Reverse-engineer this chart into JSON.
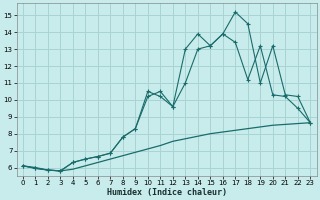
{
  "xlabel": "Humidex (Indice chaleur)",
  "bg_color": "#c8ecec",
  "grid_color": "#aad4d4",
  "line_color": "#1a6b6b",
  "xlim": [
    -0.5,
    23.5
  ],
  "ylim": [
    5.5,
    15.7
  ],
  "xticks": [
    0,
    1,
    2,
    3,
    4,
    5,
    6,
    7,
    8,
    9,
    10,
    11,
    12,
    13,
    14,
    15,
    16,
    17,
    18,
    19,
    20,
    21,
    22,
    23
  ],
  "yticks": [
    6,
    7,
    8,
    9,
    10,
    11,
    12,
    13,
    14,
    15
  ],
  "line1_x": [
    0,
    1,
    2,
    3,
    4,
    5,
    6,
    7,
    8,
    9,
    10,
    11,
    12,
    13,
    14,
    15,
    16,
    17,
    18,
    19,
    20,
    21,
    22,
    23
  ],
  "line1_y": [
    6.1,
    6.0,
    5.85,
    5.8,
    5.9,
    6.1,
    6.3,
    6.5,
    6.7,
    6.9,
    7.1,
    7.3,
    7.55,
    7.7,
    7.85,
    8.0,
    8.1,
    8.2,
    8.3,
    8.4,
    8.5,
    8.55,
    8.6,
    8.65
  ],
  "line2_x": [
    0,
    1,
    2,
    3,
    4,
    5,
    6,
    7,
    8,
    9,
    10,
    11,
    12,
    13,
    14,
    15,
    16,
    17,
    18,
    19,
    20,
    21,
    22,
    23
  ],
  "line2_y": [
    6.1,
    5.95,
    5.85,
    5.8,
    6.3,
    6.5,
    6.65,
    6.85,
    7.8,
    8.3,
    10.2,
    10.5,
    9.6,
    11.0,
    13.0,
    13.2,
    13.9,
    13.4,
    11.2,
    13.2,
    10.3,
    10.2,
    9.5,
    8.65
  ],
  "line3_x": [
    0,
    1,
    2,
    3,
    4,
    5,
    6,
    7,
    8,
    9,
    10,
    11,
    12,
    13,
    14,
    15,
    16,
    17,
    18,
    19,
    20,
    21,
    22,
    23
  ],
  "line3_y": [
    6.1,
    5.95,
    5.85,
    5.8,
    6.3,
    6.5,
    6.65,
    6.85,
    7.8,
    8.3,
    10.5,
    10.2,
    9.6,
    13.0,
    13.9,
    13.2,
    13.9,
    15.2,
    14.5,
    11.0,
    13.2,
    10.3,
    10.2,
    8.65
  ]
}
